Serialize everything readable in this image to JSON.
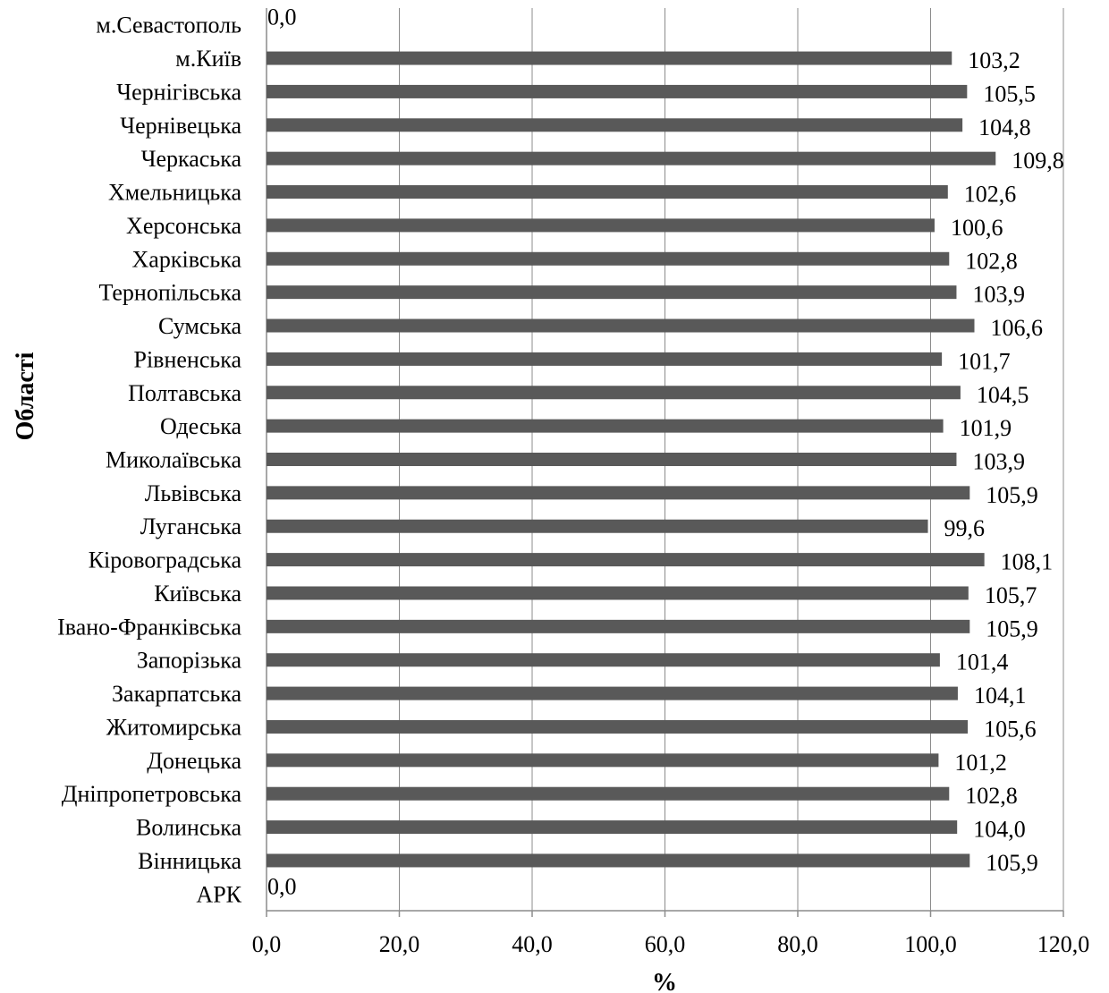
{
  "chart_data": {
    "type": "bar",
    "orientation": "horizontal",
    "categories": [
      "АРК",
      "Вінницька",
      "Волинська",
      "Дніпропетровська",
      "Донецька",
      "Житомирська",
      "Закарпатська",
      "Запорізька",
      "Івано-Франківська",
      "Київська",
      "Кіровоградська",
      "Луганська",
      "Львівська",
      "Миколаївська",
      "Одеська",
      "Полтавська",
      "Рівненська",
      "Сумська",
      "Тернопільська",
      "Харківська",
      "Херсонська",
      "Хмельницька",
      "Черкаська",
      "Чернівецька",
      "Чернігівська",
      "м.Київ",
      "м.Севастополь"
    ],
    "values": [
      0.0,
      105.9,
      104.0,
      102.8,
      101.2,
      105.6,
      104.1,
      101.4,
      105.9,
      105.7,
      108.1,
      99.6,
      105.9,
      103.9,
      101.9,
      104.5,
      101.7,
      106.6,
      103.9,
      102.8,
      100.6,
      102.6,
      109.8,
      104.8,
      105.5,
      103.2,
      0.0
    ],
    "value_labels": [
      "0,0",
      "105,9",
      "104,0",
      "102,8",
      "101,2",
      "105,6",
      "104,1",
      "101,4",
      "105,9",
      "105,7",
      "108,1",
      "99,6",
      "105,9",
      "103,9",
      "101,9",
      "104,5",
      "101,7",
      "106,6",
      "103,9",
      "102,8",
      "100,6",
      "102,6",
      "109,8",
      "104,8",
      "105,5",
      "103,2",
      "0,0"
    ],
    "xlim": [
      0,
      120
    ],
    "x_ticks": [
      0,
      20,
      40,
      60,
      80,
      100,
      120
    ],
    "x_tick_labels": [
      "0,0",
      "20,0",
      "40,0",
      "60,0",
      "80,0",
      "100,0",
      "120,0"
    ],
    "xlabel": "%",
    "ylabel": "Області",
    "grid": true,
    "bar_color": "#595959"
  }
}
